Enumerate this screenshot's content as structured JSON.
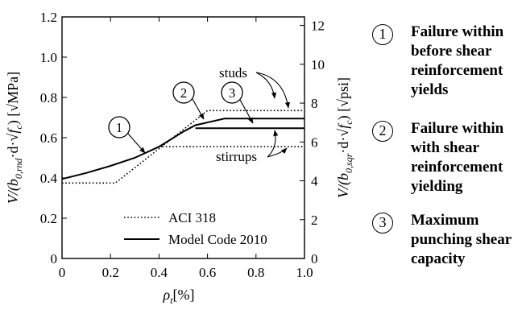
{
  "chart_data": {
    "type": "line",
    "xlabel_main": "ρ",
    "xlabel_sub": "t",
    "xlabel_unit": "[%]",
    "x_ticks": [
      "0",
      "0.2",
      "0.4",
      "0.6",
      "0.8",
      "1.0"
    ],
    "y_ticks_left": [
      "0",
      "0.2",
      "0.4",
      "0.6",
      "0.8",
      "1.0",
      "1.2"
    ],
    "y_ticks_right": [
      "0",
      "2",
      "4",
      "6",
      "8",
      "10",
      "12"
    ],
    "xlim": [
      0,
      1.0
    ],
    "ylim_left": [
      0,
      1.2
    ],
    "ylim_right": [
      0,
      12.44
    ],
    "ylabel_left": "V/(b0,rnd·d·√fc) [√MPa]",
    "ylabel_right": "V/(b0,sqr·d·√fc) [√psi]",
    "ylabel_left_parts": {
      "lead": "V/(b",
      "sub": "0,rnd",
      "mid": "·d·√",
      "f": "f",
      "fsub": "c",
      "close": ")",
      "unit": "[√MPa]"
    },
    "ylabel_right_parts": {
      "lead": "V/(b",
      "sub": "0,sqr",
      "mid": "·d·√",
      "f": "f",
      "fsub": "c",
      "close": ")",
      "unit": "[√psi]"
    },
    "series": [
      {
        "name": "ACI 318",
        "style": "dotted",
        "segments": [
          {
            "x": [
              0,
              0.22,
              0.6,
              1.0
            ],
            "y": [
              0.375,
              0.375,
              0.735,
              0.735
            ]
          },
          {
            "x": [
              0.4,
              1.0
            ],
            "y": [
              0.555,
              0.555
            ]
          }
        ]
      },
      {
        "name": "Model Code 2010",
        "style": "solid",
        "segments": [
          {
            "x": [
              0,
              0.1,
              0.2,
              0.3,
              0.4,
              0.5,
              0.55,
              0.67,
              1.0
            ],
            "y": [
              0.395,
              0.425,
              0.46,
              0.5,
              0.555,
              0.63,
              0.662,
              0.695,
              0.695
            ]
          },
          {
            "x": [
              0.55,
              1.0
            ],
            "y": [
              0.647,
              0.647
            ]
          }
        ]
      }
    ],
    "annotations": {
      "studs": "studs",
      "stirrups": "stirrups",
      "markers": [
        "1",
        "2",
        "3"
      ]
    },
    "grid": false,
    "legend_position": "bottom-left"
  },
  "notes": [
    {
      "number": "1",
      "text": "Failure within before shear reinforcement yields"
    },
    {
      "number": "2",
      "text": "Failure within with shear reinforcement yielding"
    },
    {
      "number": "3",
      "text": "Maximum punching shear capacity"
    }
  ]
}
